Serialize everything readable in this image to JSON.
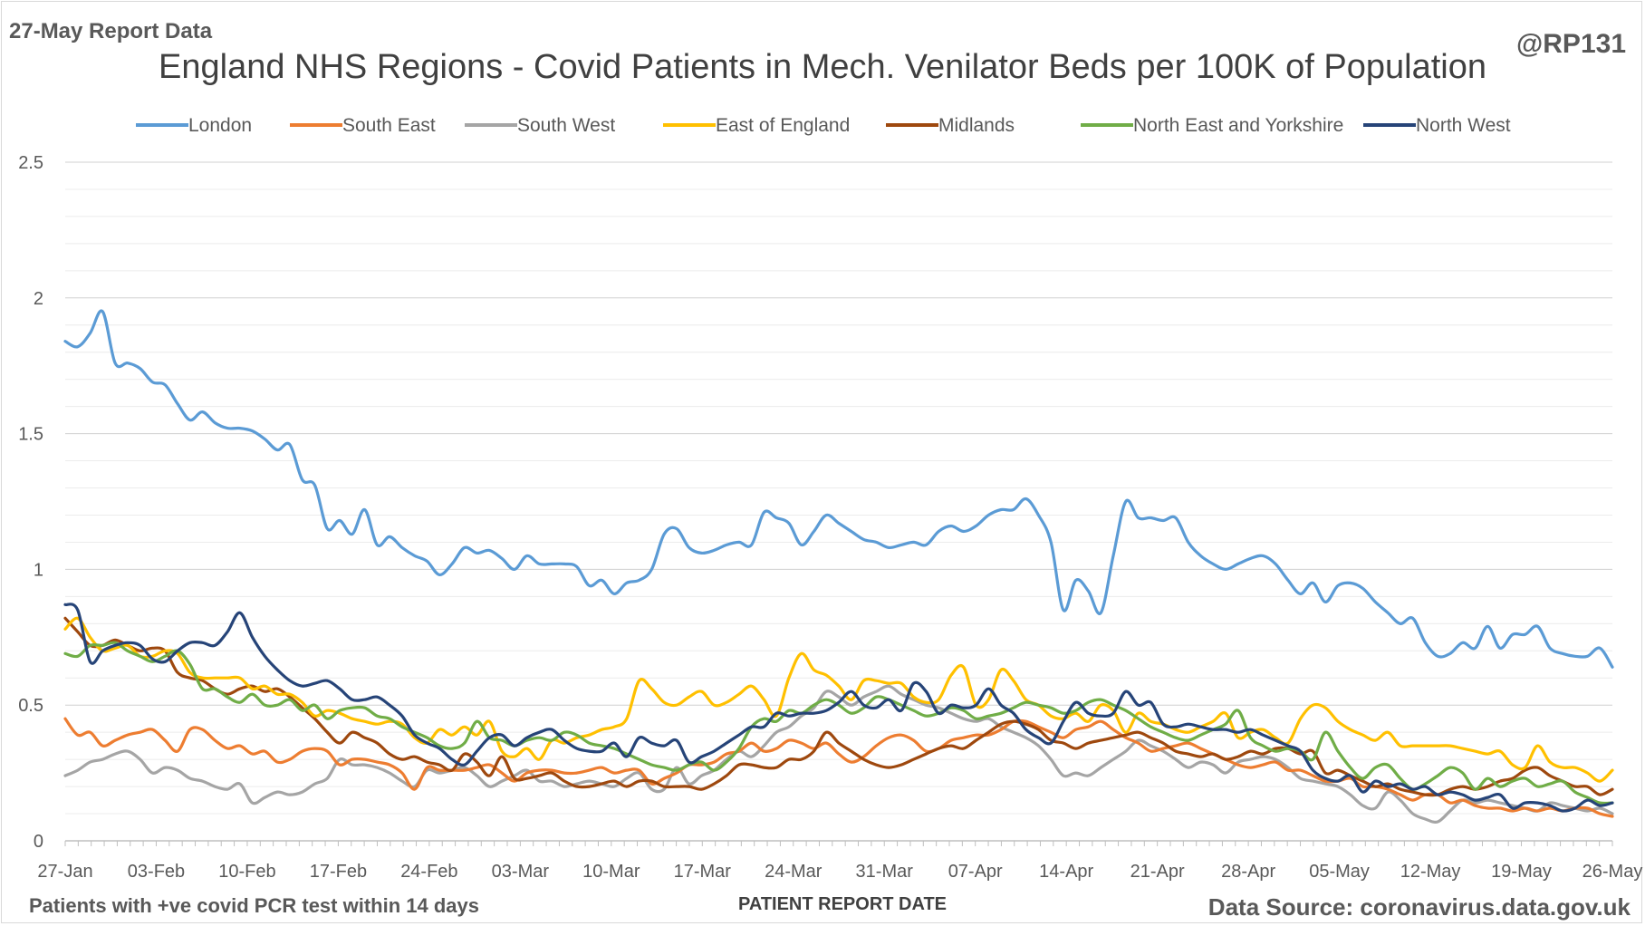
{
  "header": {
    "report_label": "27-May Report Data",
    "handle": "@RP131"
  },
  "footer": {
    "note": "Patients with +ve covid PCR test within 14 days",
    "source": "Data Source: coronavirus.data.gov.uk"
  },
  "colors": {
    "London": "#5b9bd5",
    "South East": "#ed7d31",
    "South West": "#a5a5a5",
    "East of England": "#ffc000",
    "Midlands": "#9e480e",
    "North East and Yorkshire": "#70ad47",
    "North West": "#264478"
  },
  "chart_data": {
    "type": "line",
    "title": "England NHS Regions - Covid Patients in Mech. Venilator Beds per 100K of Population",
    "xlabel": "PATIENT REPORT DATE",
    "ylabel": "",
    "ylim": [
      0,
      2.5
    ],
    "yticks": [
      "0",
      "0.5",
      "1",
      "1.5",
      "2",
      "2.5"
    ],
    "grid": true,
    "legend_position": "top",
    "x_start": "27-Jan",
    "x_end": "26-May",
    "xticks": [
      "27-Jan",
      "03-Feb",
      "10-Feb",
      "17-Feb",
      "24-Feb",
      "03-Mar",
      "10-Mar",
      "17-Mar",
      "24-Mar",
      "31-Mar",
      "07-Apr",
      "14-Apr",
      "21-Apr",
      "28-Apr",
      "05-May",
      "12-May",
      "19-May",
      "26-May"
    ],
    "series": [
      {
        "name": "London",
        "values": [
          1.84,
          1.82,
          1.87,
          1.95,
          1.76,
          1.76,
          1.74,
          1.69,
          1.68,
          1.61,
          1.55,
          1.58,
          1.54,
          1.52,
          1.52,
          1.51,
          1.48,
          1.44,
          1.46,
          1.33,
          1.31,
          1.15,
          1.18,
          1.13,
          1.22,
          1.09,
          1.12,
          1.08,
          1.05,
          1.03,
          0.98,
          1.02,
          1.08,
          1.06,
          1.07,
          1.04,
          1.0,
          1.05,
          1.02,
          1.02,
          1.02,
          1.01,
          0.94,
          0.96,
          0.91,
          0.95,
          0.96,
          1.0,
          1.13,
          1.15,
          1.08,
          1.06,
          1.07,
          1.09,
          1.1,
          1.09,
          1.21,
          1.19,
          1.17,
          1.09,
          1.14,
          1.2,
          1.17,
          1.14,
          1.11,
          1.1,
          1.08,
          1.09,
          1.1,
          1.09,
          1.14,
          1.16,
          1.14,
          1.16,
          1.2,
          1.22,
          1.22,
          1.26,
          1.2,
          1.1,
          0.85,
          0.96,
          0.92,
          0.84,
          1.05,
          1.25,
          1.19,
          1.19,
          1.18,
          1.19,
          1.1,
          1.05,
          1.02,
          1.0,
          1.02,
          1.04,
          1.05,
          1.02,
          0.96,
          0.91,
          0.95,
          0.88,
          0.94,
          0.95,
          0.93,
          0.88,
          0.84,
          0.8,
          0.82,
          0.73,
          0.68,
          0.69,
          0.73,
          0.71,
          0.79,
          0.71,
          0.76,
          0.76,
          0.79,
          0.71,
          0.69,
          0.68,
          0.68,
          0.71,
          0.64
        ]
      },
      {
        "name": "South East",
        "values": [
          0.45,
          0.39,
          0.4,
          0.35,
          0.37,
          0.39,
          0.4,
          0.41,
          0.37,
          0.33,
          0.41,
          0.41,
          0.37,
          0.34,
          0.35,
          0.32,
          0.33,
          0.29,
          0.3,
          0.33,
          0.34,
          0.33,
          0.28,
          0.3,
          0.3,
          0.29,
          0.28,
          0.25,
          0.19,
          0.27,
          0.26,
          0.26,
          0.26,
          0.27,
          0.28,
          0.25,
          0.22,
          0.25,
          0.26,
          0.26,
          0.25,
          0.25,
          0.26,
          0.27,
          0.25,
          0.26,
          0.26,
          0.21,
          0.23,
          0.25,
          0.28,
          0.28,
          0.29,
          0.32,
          0.33,
          0.36,
          0.33,
          0.34,
          0.37,
          0.36,
          0.34,
          0.36,
          0.32,
          0.29,
          0.31,
          0.35,
          0.38,
          0.39,
          0.37,
          0.33,
          0.34,
          0.37,
          0.38,
          0.39,
          0.39,
          0.41,
          0.44,
          0.44,
          0.42,
          0.4,
          0.38,
          0.41,
          0.42,
          0.44,
          0.41,
          0.38,
          0.36,
          0.33,
          0.34,
          0.35,
          0.36,
          0.34,
          0.32,
          0.3,
          0.28,
          0.27,
          0.28,
          0.29,
          0.26,
          0.26,
          0.24,
          0.22,
          0.22,
          0.23,
          0.2,
          0.2,
          0.19,
          0.17,
          0.15,
          0.17,
          0.17,
          0.14,
          0.15,
          0.13,
          0.12,
          0.12,
          0.11,
          0.12,
          0.11,
          0.12,
          0.11,
          0.12,
          0.12,
          0.1,
          0.09
        ]
      },
      {
        "name": "South West",
        "values": [
          0.24,
          0.26,
          0.29,
          0.3,
          0.32,
          0.33,
          0.3,
          0.25,
          0.27,
          0.26,
          0.23,
          0.22,
          0.2,
          0.19,
          0.21,
          0.14,
          0.16,
          0.18,
          0.17,
          0.18,
          0.21,
          0.23,
          0.3,
          0.28,
          0.28,
          0.27,
          0.25,
          0.22,
          0.2,
          0.26,
          0.25,
          0.26,
          0.27,
          0.24,
          0.2,
          0.22,
          0.24,
          0.26,
          0.22,
          0.22,
          0.2,
          0.21,
          0.22,
          0.21,
          0.2,
          0.23,
          0.25,
          0.19,
          0.19,
          0.27,
          0.21,
          0.24,
          0.26,
          0.3,
          0.33,
          0.31,
          0.35,
          0.4,
          0.42,
          0.46,
          0.49,
          0.55,
          0.53,
          0.5,
          0.53,
          0.55,
          0.57,
          0.54,
          0.52,
          0.5,
          0.49,
          0.47,
          0.45,
          0.44,
          0.45,
          0.42,
          0.4,
          0.38,
          0.35,
          0.3,
          0.24,
          0.25,
          0.24,
          0.27,
          0.3,
          0.33,
          0.37,
          0.35,
          0.33,
          0.3,
          0.27,
          0.29,
          0.28,
          0.25,
          0.29,
          0.3,
          0.31,
          0.3,
          0.27,
          0.23,
          0.22,
          0.21,
          0.2,
          0.17,
          0.13,
          0.12,
          0.18,
          0.15,
          0.1,
          0.08,
          0.07,
          0.11,
          0.15,
          0.14,
          0.15,
          0.14,
          0.13,
          0.12,
          0.11,
          0.14,
          0.13,
          0.12,
          0.11,
          0.12,
          0.1
        ]
      },
      {
        "name": "East of England",
        "values": [
          0.78,
          0.82,
          0.75,
          0.7,
          0.71,
          0.72,
          0.68,
          0.68,
          0.7,
          0.69,
          0.62,
          0.6,
          0.6,
          0.6,
          0.6,
          0.56,
          0.57,
          0.54,
          0.54,
          0.51,
          0.46,
          0.48,
          0.47,
          0.45,
          0.44,
          0.43,
          0.44,
          0.43,
          0.38,
          0.36,
          0.41,
          0.39,
          0.42,
          0.39,
          0.44,
          0.33,
          0.31,
          0.34,
          0.3,
          0.37,
          0.36,
          0.38,
          0.39,
          0.41,
          0.42,
          0.45,
          0.59,
          0.56,
          0.51,
          0.5,
          0.53,
          0.55,
          0.5,
          0.51,
          0.54,
          0.57,
          0.52,
          0.46,
          0.6,
          0.69,
          0.63,
          0.61,
          0.57,
          0.52,
          0.59,
          0.59,
          0.58,
          0.58,
          0.53,
          0.51,
          0.52,
          0.61,
          0.64,
          0.5,
          0.52,
          0.63,
          0.59,
          0.52,
          0.5,
          0.46,
          0.45,
          0.47,
          0.44,
          0.5,
          0.48,
          0.4,
          0.47,
          0.44,
          0.43,
          0.41,
          0.4,
          0.42,
          0.44,
          0.47,
          0.38,
          0.4,
          0.41,
          0.38,
          0.36,
          0.45,
          0.5,
          0.49,
          0.44,
          0.41,
          0.39,
          0.37,
          0.4,
          0.35,
          0.35,
          0.35,
          0.35,
          0.35,
          0.34,
          0.33,
          0.32,
          0.33,
          0.28,
          0.27,
          0.35,
          0.29,
          0.27,
          0.27,
          0.25,
          0.22,
          0.26
        ]
      },
      {
        "name": "Midlands",
        "values": [
          0.82,
          0.77,
          0.72,
          0.72,
          0.74,
          0.72,
          0.7,
          0.71,
          0.7,
          0.62,
          0.6,
          0.59,
          0.56,
          0.54,
          0.56,
          0.57,
          0.55,
          0.56,
          0.53,
          0.49,
          0.45,
          0.4,
          0.36,
          0.4,
          0.38,
          0.36,
          0.32,
          0.3,
          0.31,
          0.29,
          0.28,
          0.26,
          0.32,
          0.29,
          0.24,
          0.31,
          0.23,
          0.23,
          0.24,
          0.25,
          0.22,
          0.2,
          0.2,
          0.21,
          0.22,
          0.2,
          0.22,
          0.22,
          0.2,
          0.2,
          0.2,
          0.19,
          0.21,
          0.24,
          0.28,
          0.28,
          0.27,
          0.27,
          0.3,
          0.3,
          0.33,
          0.4,
          0.36,
          0.33,
          0.3,
          0.28,
          0.27,
          0.28,
          0.3,
          0.32,
          0.34,
          0.35,
          0.34,
          0.37,
          0.4,
          0.43,
          0.44,
          0.43,
          0.41,
          0.37,
          0.36,
          0.34,
          0.36,
          0.37,
          0.38,
          0.39,
          0.4,
          0.38,
          0.36,
          0.33,
          0.32,
          0.31,
          0.32,
          0.3,
          0.31,
          0.33,
          0.32,
          0.34,
          0.34,
          0.32,
          0.33,
          0.25,
          0.26,
          0.24,
          0.22,
          0.2,
          0.21,
          0.19,
          0.18,
          0.17,
          0.17,
          0.19,
          0.2,
          0.19,
          0.2,
          0.22,
          0.23,
          0.26,
          0.27,
          0.24,
          0.22,
          0.2,
          0.2,
          0.17,
          0.19
        ]
      },
      {
        "name": "North East and Yorkshire",
        "values": [
          0.69,
          0.68,
          0.72,
          0.72,
          0.73,
          0.7,
          0.68,
          0.66,
          0.68,
          0.7,
          0.65,
          0.56,
          0.56,
          0.53,
          0.51,
          0.54,
          0.5,
          0.5,
          0.52,
          0.48,
          0.5,
          0.45,
          0.48,
          0.49,
          0.49,
          0.46,
          0.45,
          0.42,
          0.4,
          0.38,
          0.35,
          0.34,
          0.36,
          0.44,
          0.38,
          0.37,
          0.35,
          0.37,
          0.38,
          0.37,
          0.4,
          0.39,
          0.36,
          0.35,
          0.34,
          0.32,
          0.3,
          0.28,
          0.27,
          0.26,
          0.28,
          0.29,
          0.26,
          0.29,
          0.34,
          0.42,
          0.45,
          0.44,
          0.48,
          0.47,
          0.5,
          0.52,
          0.5,
          0.47,
          0.49,
          0.53,
          0.52,
          0.5,
          0.48,
          0.46,
          0.47,
          0.49,
          0.48,
          0.45,
          0.46,
          0.47,
          0.49,
          0.51,
          0.5,
          0.49,
          0.47,
          0.48,
          0.51,
          0.52,
          0.5,
          0.48,
          0.45,
          0.42,
          0.4,
          0.38,
          0.37,
          0.39,
          0.41,
          0.43,
          0.48,
          0.38,
          0.35,
          0.33,
          0.34,
          0.33,
          0.3,
          0.4,
          0.33,
          0.27,
          0.23,
          0.27,
          0.28,
          0.23,
          0.19,
          0.21,
          0.24,
          0.27,
          0.25,
          0.19,
          0.23,
          0.2,
          0.22,
          0.23,
          0.2,
          0.21,
          0.22,
          0.18,
          0.16,
          0.14,
          0.14
        ]
      },
      {
        "name": "North West",
        "values": [
          0.87,
          0.85,
          0.66,
          0.7,
          0.72,
          0.73,
          0.72,
          0.67,
          0.66,
          0.7,
          0.73,
          0.73,
          0.72,
          0.77,
          0.84,
          0.75,
          0.68,
          0.63,
          0.59,
          0.57,
          0.58,
          0.59,
          0.56,
          0.52,
          0.52,
          0.53,
          0.5,
          0.46,
          0.39,
          0.36,
          0.34,
          0.3,
          0.28,
          0.33,
          0.38,
          0.39,
          0.35,
          0.38,
          0.4,
          0.41,
          0.37,
          0.34,
          0.33,
          0.33,
          0.36,
          0.31,
          0.38,
          0.36,
          0.35,
          0.37,
          0.29,
          0.31,
          0.33,
          0.36,
          0.39,
          0.42,
          0.42,
          0.47,
          0.46,
          0.47,
          0.47,
          0.48,
          0.51,
          0.55,
          0.5,
          0.49,
          0.52,
          0.48,
          0.58,
          0.55,
          0.47,
          0.5,
          0.49,
          0.5,
          0.56,
          0.5,
          0.47,
          0.41,
          0.38,
          0.36,
          0.44,
          0.51,
          0.47,
          0.46,
          0.47,
          0.55,
          0.5,
          0.51,
          0.43,
          0.42,
          0.43,
          0.42,
          0.41,
          0.41,
          0.4,
          0.41,
          0.39,
          0.37,
          0.35,
          0.33,
          0.26,
          0.23,
          0.22,
          0.24,
          0.18,
          0.22,
          0.2,
          0.21,
          0.19,
          0.2,
          0.17,
          0.18,
          0.17,
          0.15,
          0.16,
          0.17,
          0.12,
          0.14,
          0.14,
          0.13,
          0.11,
          0.12,
          0.15,
          0.13,
          0.14
        ]
      }
    ]
  }
}
